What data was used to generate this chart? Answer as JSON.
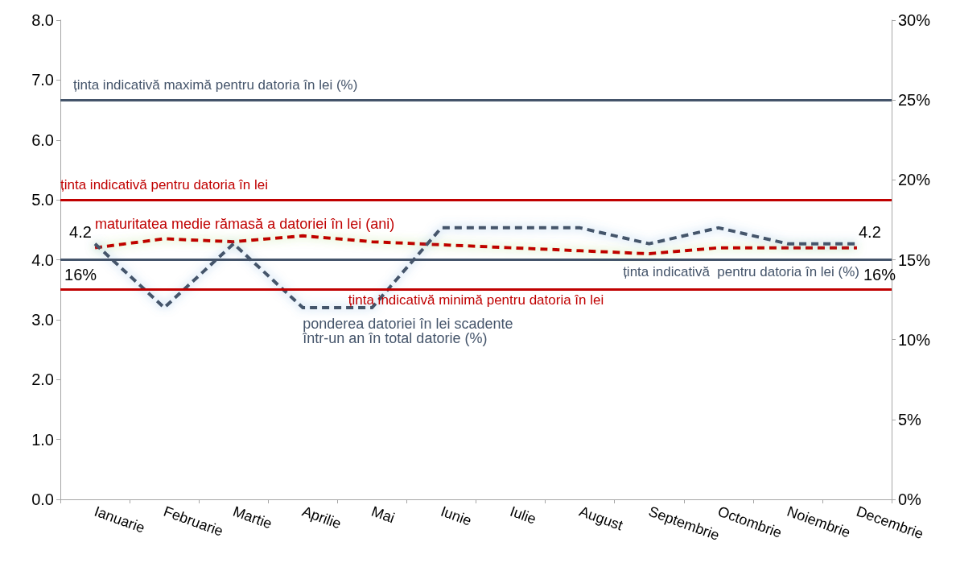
{
  "chart_data": {
    "type": "line",
    "categories": [
      "Ianuarie",
      "Februarie",
      "Martie",
      "Aprilie",
      "Mai",
      "Iunie",
      "Iulie",
      "August",
      "Septembrie",
      "Octombrie",
      "Noiembrie",
      "Decembrie"
    ],
    "series": [
      {
        "name": "maturitatea medie rămasă a datoriei în lei (ani)",
        "color": "#c00000",
        "values": [
          4.2,
          4.35,
          4.3,
          4.4,
          4.3,
          4.25,
          4.2,
          4.15,
          4.1,
          4.2,
          4.2,
          4.2
        ],
        "value_labels": [
          "4.2",
          null,
          null,
          null,
          null,
          null,
          null,
          null,
          null,
          null,
          null,
          "4.2"
        ]
      },
      {
        "name": "ponderea datoriei în lei scadente\nîntr-un an în total datorie (%)",
        "color": "#44546a",
        "axis": "y2",
        "values": [
          16,
          12,
          16,
          12,
          12,
          17,
          17,
          17,
          16,
          17,
          16,
          16
        ],
        "value_labels": [
          "16%",
          null,
          null,
          null,
          null,
          null,
          null,
          null,
          null,
          null,
          null,
          "16%"
        ]
      }
    ],
    "ylim": [
      0,
      8
    ],
    "yticks": [
      {
        "value": 0,
        "label": "0.0"
      },
      {
        "value": 1,
        "label": "1.0"
      },
      {
        "value": 2,
        "label": "2.0"
      },
      {
        "value": 3,
        "label": "3.0"
      },
      {
        "value": 4,
        "label": "4.0"
      },
      {
        "value": 5,
        "label": "5.0"
      },
      {
        "value": 6,
        "label": "6.0"
      },
      {
        "value": 7,
        "label": "7.0"
      },
      {
        "value": 8,
        "label": "8.0"
      }
    ],
    "y2lim": [
      0,
      30
    ],
    "y2ticks": [
      {
        "value": 0,
        "label": "0%"
      },
      {
        "value": 5,
        "label": "5%"
      },
      {
        "value": 10,
        "label": "10%"
      },
      {
        "value": 15,
        "label": "15%"
      },
      {
        "value": 20,
        "label": "20%"
      },
      {
        "value": 25,
        "label": "25%"
      },
      {
        "value": 30,
        "label": "30%"
      }
    ],
    "ref_lines": [
      {
        "axis": "y2",
        "value": 25,
        "label": "ținta indicativă maximă pentru datoria în lei (%)",
        "color": "#44546a"
      },
      {
        "axis": "y",
        "value": 5,
        "label": "ținta indicativă pentru datoria în lei",
        "color": "#c00000"
      },
      {
        "axis": "y2",
        "value": 15,
        "label": "ținta indicativă  pentru datoria în lei (%)",
        "color": "#44546a"
      },
      {
        "axis": "y",
        "value": 3.5,
        "label": "ținta indicativă minimă pentru datoria în lei",
        "color": "#c00000"
      }
    ],
    "grid": false,
    "legend": false,
    "marker": "none",
    "line_style": "dashed"
  }
}
